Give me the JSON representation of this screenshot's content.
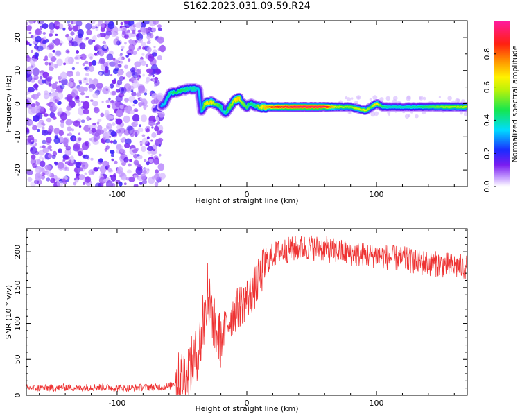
{
  "title": "S162.2023.031.09.59.R24",
  "colors": {
    "series": "#ee3333",
    "frame": "#000000"
  },
  "chart_data": [
    {
      "type": "heatmap",
      "xlabel": "Height of straight line (km)",
      "ylabel": "Frequency (Hz)",
      "xlim": [
        -170,
        170
      ],
      "ylim": [
        -25,
        25
      ],
      "xticks": [
        -100,
        0,
        100
      ],
      "yticks": [
        -20,
        -10,
        0,
        10,
        20
      ],
      "colorbar": {
        "label": "Normalized spectral amplitude",
        "range": [
          0,
          1
        ],
        "ticks": [
          "0.0",
          "0.2",
          "0.4",
          "0.6",
          "0.8"
        ],
        "colormap": "white-violet-blue-cyan-green-yellow-orange-red-magenta"
      },
      "noise_region_x": [
        -170,
        -67
      ],
      "ridge": {
        "x": [
          -66,
          -63,
          -60,
          -55,
          -50,
          -45,
          -40,
          -37,
          -35,
          -32,
          -28,
          -24,
          -20,
          -17,
          -15,
          -12,
          -9,
          -6,
          -3,
          0,
          3,
          6,
          10,
          20,
          40,
          60,
          70,
          80,
          85,
          88,
          92,
          96,
          100,
          105,
          110,
          130,
          150,
          170
        ],
        "freq": [
          -1,
          0.5,
          3,
          3.5,
          4,
          4.5,
          4.5,
          4,
          -2,
          0,
          0.5,
          0,
          -1,
          -3,
          -2,
          -0.5,
          1,
          1.5,
          0,
          -1,
          0,
          -0.5,
          -1,
          -1,
          -1,
          -1,
          -1,
          -1,
          -1.5,
          -1.8,
          -2,
          -1,
          0,
          -1,
          -1,
          -1,
          -1,
          -1
        ],
        "amplitude": [
          0.3,
          0.35,
          0.4,
          0.45,
          0.45,
          0.4,
          0.4,
          0.35,
          0.3,
          0.6,
          0.7,
          0.55,
          0.45,
          0.35,
          0.45,
          0.55,
          0.65,
          0.7,
          0.55,
          0.5,
          0.45,
          0.4,
          0.6,
          0.85,
          0.95,
          0.95,
          0.6,
          0.55,
          0.6,
          0.6,
          0.65,
          0.5,
          0.7,
          0.45,
          0.4,
          0.42,
          0.55,
          0.6
        ]
      }
    },
    {
      "type": "line",
      "xlabel": "Height of straight line (km)",
      "ylabel": "SNR (10 * v/v)",
      "xlim": [
        -170,
        170
      ],
      "ylim": [
        0,
        232
      ],
      "xticks": [
        -100,
        0,
        100
      ],
      "yticks": [
        0,
        50,
        100,
        150,
        200
      ],
      "series": [
        {
          "x": [
            -170,
            -160,
            -150,
            -140,
            -130,
            -120,
            -110,
            -100,
            -90,
            -80,
            -70,
            -60,
            -55,
            -50,
            -45,
            -40,
            -35,
            -30,
            -27,
            -25,
            -20,
            -15,
            -10,
            -5,
            0,
            5,
            10,
            15,
            20,
            25,
            30,
            40,
            50,
            60,
            70,
            80,
            90,
            100,
            110,
            120,
            130,
            140,
            150,
            160,
            170
          ],
          "values": [
            10,
            10,
            10,
            11,
            10,
            11,
            11,
            10,
            10,
            11,
            11,
            12,
            18,
            25,
            35,
            50,
            80,
            130,
            120,
            95,
            75,
            100,
            115,
            125,
            135,
            145,
            165,
            185,
            195,
            200,
            202,
            205,
            206,
            204,
            200,
            198,
            195,
            195,
            192,
            190,
            186,
            184,
            182,
            180,
            178
          ]
        }
      ]
    }
  ]
}
